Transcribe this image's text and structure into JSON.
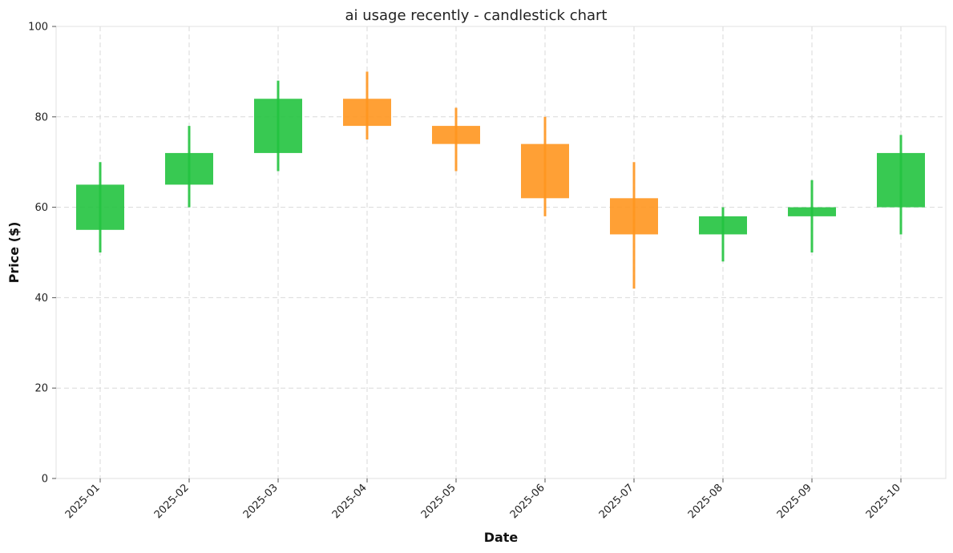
{
  "chart_data": {
    "type": "candlestick",
    "title": "ai usage recently - candlestick chart",
    "xlabel": "Date",
    "ylabel": "Price ($)",
    "ylim": [
      0,
      100
    ],
    "yticks": [
      0,
      20,
      40,
      60,
      80,
      100
    ],
    "grid": true,
    "categories": [
      "2025-01",
      "2025-02",
      "2025-03",
      "2025-04",
      "2025-05",
      "2025-06",
      "2025-07",
      "2025-08",
      "2025-09",
      "2025-10"
    ],
    "open": [
      55,
      65,
      72,
      84,
      78,
      74,
      62,
      54,
      58,
      60
    ],
    "high": [
      70,
      78,
      88,
      90,
      82,
      80,
      70,
      60,
      66,
      76
    ],
    "low": [
      50,
      60,
      68,
      75,
      68,
      58,
      42,
      48,
      50,
      54
    ],
    "close": [
      65,
      72,
      84,
      78,
      74,
      62,
      54,
      58,
      60,
      72
    ],
    "colors": {
      "up": "#22c33f",
      "down": "#ff961f",
      "grid": "#d9d9d9",
      "axis": "#e0e0e0",
      "text": "#222222"
    }
  }
}
